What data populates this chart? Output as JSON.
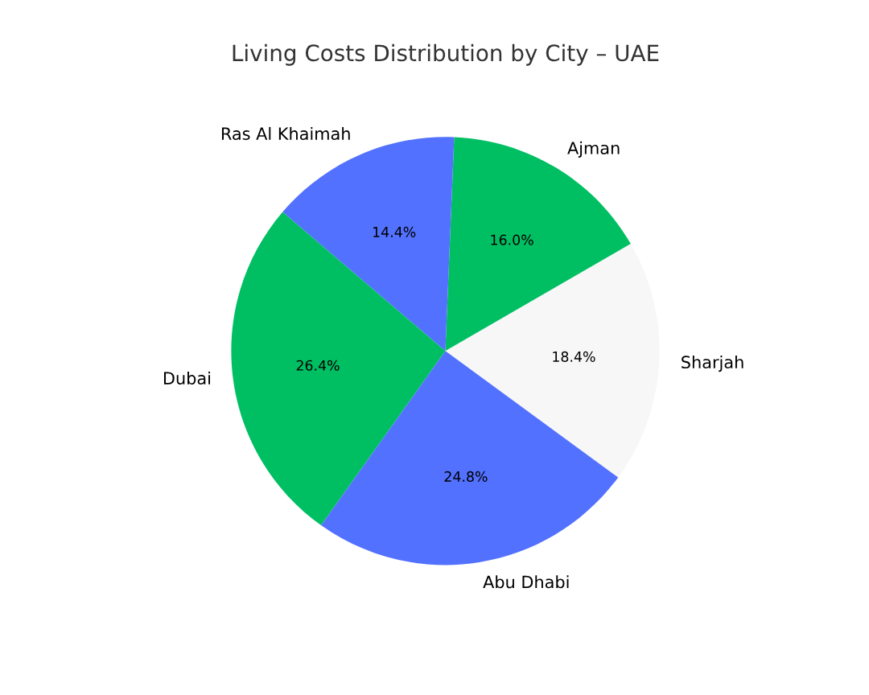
{
  "chart_data": {
    "type": "pie",
    "title": "Living Costs Distribution by City – UAE",
    "categories": [
      "Sharjah",
      "Ajman",
      "Ras Al Khaimah",
      "Dubai",
      "Abu Dhabi"
    ],
    "values": [
      18.4,
      16.0,
      14.4,
      26.4,
      24.8
    ],
    "colors": [
      "#f7f7f7",
      "#00bf63",
      "#5271ff",
      "#00bf63",
      "#5271ff"
    ],
    "value_labels": [
      "18.4%",
      "16.0%",
      "14.4%",
      "26.4%",
      "24.8%"
    ],
    "legend": false
  }
}
